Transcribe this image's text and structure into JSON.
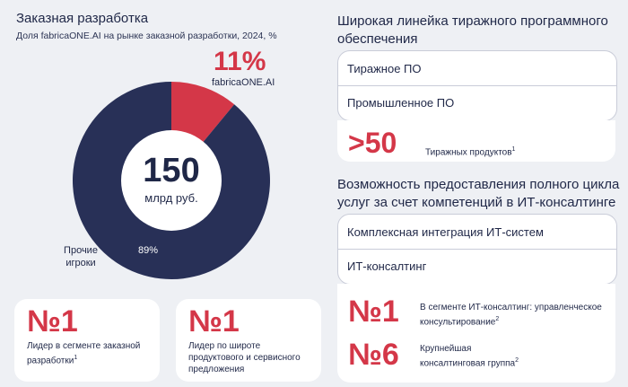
{
  "left": {
    "title": "Заказная разработка",
    "subtitle": "Доля fabricaONE.AI на рынке заказной разработки, 2024, %",
    "center_value": "150",
    "center_unit": "млрд руб.",
    "highlight_pct": "11%",
    "highlight_name": "fabricaONE.AI",
    "others_label": "Прочие игроки",
    "others_pct": "89%"
  },
  "chart_data": {
    "type": "pie",
    "categories": [
      "fabricaONE.AI",
      "Прочие игроки"
    ],
    "values": [
      11,
      89
    ],
    "colors": [
      "#d43748",
      "#283057"
    ],
    "title": "Доля fabricaONE.AI на рынке заказной разработки, 2024, %"
  },
  "cards": [
    {
      "big": "№1",
      "text": "Лидер в сегменте заказной разработки",
      "sup": "1"
    },
    {
      "big": "№1",
      "text": "Лидер по широте продуктового и сервисного предложения",
      "sup": ""
    }
  ],
  "right_top": {
    "title": "Широкая линейка тиражного программного обеспечения",
    "items": [
      "Тиражное ПО",
      "Промышленное ПО"
    ],
    "stat_big": ">50",
    "stat_text": "Тиражных продуктов",
    "stat_sup": "1"
  },
  "right_bottom": {
    "title": "Возможность предоставления полного цикла услуг за счет компетенций в ИТ-консалтинге",
    "items": [
      "Комплексная интеграция ИТ-систем",
      "ИТ-консалтинг"
    ],
    "stats": [
      {
        "big": "№1",
        "text": "В сегменте ИТ-консалтинг: управленческое консультирование",
        "sup": "2"
      },
      {
        "big": "№6",
        "text": "Крупнейшая консалтинговая группа",
        "sup": "2"
      }
    ]
  },
  "colors": {
    "accent_red": "#d43748",
    "navy": "#283057",
    "background": "#eef0f4"
  }
}
